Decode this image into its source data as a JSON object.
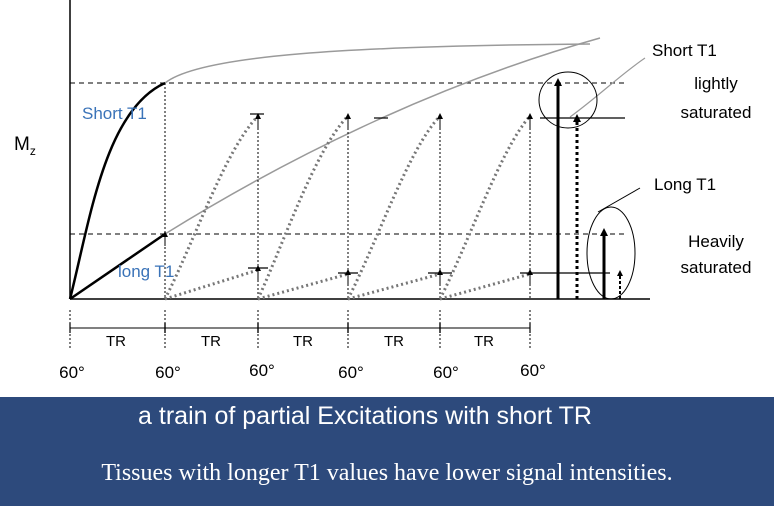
{
  "diagram": {
    "axis_label_main": "M",
    "axis_label_sub": "z",
    "curve_labels": {
      "short_t1": "Short T1",
      "long_t1": "long T1"
    },
    "right_labels": {
      "short_t1": "Short T1",
      "lightly_line1": "lightly",
      "lightly_line2": "saturated",
      "long_t1": "Long T1",
      "heavily_line1": "Heavily",
      "heavily_line2": "saturated"
    },
    "interval_labels": [
      "TR",
      "TR",
      "TR",
      "TR",
      "TR"
    ],
    "pulse_labels": [
      "60°",
      "60°",
      "60°",
      "60°",
      "60°",
      "60°"
    ],
    "colors": {
      "label_blue": "#3a73b8",
      "curve_gray": "#9a9a9a",
      "ink": "#000000"
    }
  },
  "banner": {
    "caption": "a train of partial Excitations with short TR",
    "subtitle": "Tissues with longer T1 values have lower signal intensities.",
    "background": "#2d4a7c"
  }
}
